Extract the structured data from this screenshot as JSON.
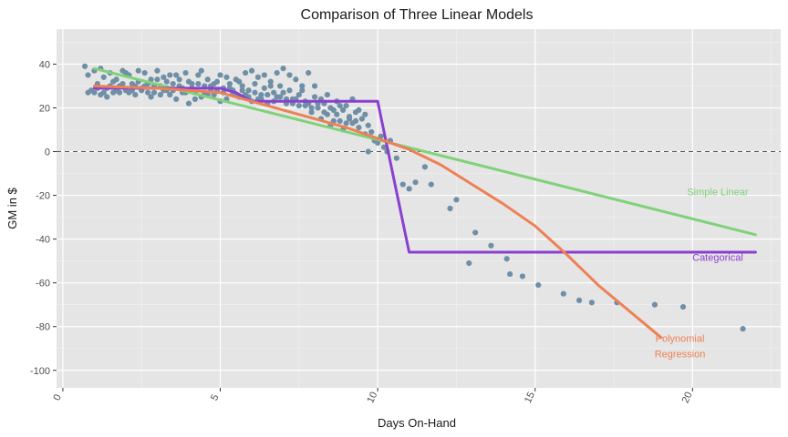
{
  "chart_data": {
    "type": "scatter",
    "title": "Comparison of Three Linear Models",
    "xlabel": "Days On-Hand",
    "ylabel": "GM in $",
    "xlim": [
      -0.2,
      22.8
    ],
    "ylim": [
      -108,
      56
    ],
    "x_ticks": [
      0,
      5,
      10,
      15,
      20
    ],
    "y_ticks": [
      40,
      20,
      0,
      -20,
      -40,
      -60,
      -80,
      -100
    ],
    "grid": true,
    "reference_line": {
      "y": 0,
      "style": "dashed"
    },
    "colors": {
      "panel": "#e5e5e5",
      "grid": "#ffffff",
      "points": "#6f8fa6",
      "simple_linear": "#7fd27a",
      "categorical": "#8a3fcf",
      "polynomial": "#ee8055"
    },
    "series": [
      {
        "name": "Simple Linear",
        "kind": "line",
        "color": "#7fd27a",
        "points": [
          [
            1,
            38
          ],
          [
            22,
            -38
          ]
        ]
      },
      {
        "name": "Categorical",
        "kind": "line",
        "color": "#8a3fcf",
        "points": [
          [
            1,
            29
          ],
          [
            5,
            29
          ],
          [
            5.5,
            27
          ],
          [
            6,
            23
          ],
          [
            10,
            23
          ],
          [
            11,
            -46
          ],
          [
            22,
            -46
          ]
        ]
      },
      {
        "name": "Polynomial Regression",
        "kind": "line",
        "color": "#ee8055",
        "points": [
          [
            1,
            30
          ],
          [
            3,
            29
          ],
          [
            5,
            27
          ],
          [
            7,
            19
          ],
          [
            9,
            11
          ],
          [
            10,
            6
          ],
          [
            11,
            1
          ],
          [
            12,
            -6
          ],
          [
            13,
            -15
          ],
          [
            14,
            -24
          ],
          [
            15,
            -34
          ],
          [
            16,
            -47
          ],
          [
            17,
            -61
          ],
          [
            18,
            -73
          ],
          [
            19,
            -85
          ]
        ]
      }
    ],
    "annotations": [
      {
        "text": "Simple Linear",
        "x": 20.8,
        "y": -20,
        "color": "#7fd27a"
      },
      {
        "text": "Categorical",
        "x": 20.8,
        "y": -50,
        "color": "#8a3fcf"
      },
      {
        "text": "Polynomial",
        "x": 19.6,
        "y": -87,
        "color": "#ee8055"
      },
      {
        "text": "Regression",
        "x": 19.6,
        "y": -94,
        "color": "#ee8055"
      }
    ],
    "scatter_points": [
      [
        0.7,
        39
      ],
      [
        0.8,
        35
      ],
      [
        0.9,
        28
      ],
      [
        1.0,
        37
      ],
      [
        1.1,
        31
      ],
      [
        1.2,
        26
      ],
      [
        0.8,
        27
      ],
      [
        1.3,
        34
      ],
      [
        1.4,
        29
      ],
      [
        1.5,
        36
      ],
      [
        1.6,
        27
      ],
      [
        1.7,
        33
      ],
      [
        1.8,
        30
      ],
      [
        1.9,
        37
      ],
      [
        2.0,
        28
      ],
      [
        2.1,
        35
      ],
      [
        2.2,
        31
      ],
      [
        2.3,
        26
      ],
      [
        2.4,
        32
      ],
      [
        2.5,
        29
      ],
      [
        2.6,
        36
      ],
      [
        2.7,
        27
      ],
      [
        2.8,
        33
      ],
      [
        2.9,
        30
      ],
      [
        3.0,
        37
      ],
      [
        3.1,
        26
      ],
      [
        3.2,
        34
      ],
      [
        3.3,
        28
      ],
      [
        3.4,
        35
      ],
      [
        3.5,
        31
      ],
      [
        3.6,
        24
      ],
      [
        3.7,
        33
      ],
      [
        3.8,
        29
      ],
      [
        3.9,
        36
      ],
      [
        4.0,
        22
      ],
      [
        4.1,
        31
      ],
      [
        4.2,
        27
      ],
      [
        4.3,
        35
      ],
      [
        4.4,
        25
      ],
      [
        4.5,
        30
      ],
      [
        4.6,
        33
      ],
      [
        4.7,
        28
      ],
      [
        4.8,
        26
      ],
      [
        4.9,
        32
      ],
      [
        5.0,
        35
      ],
      [
        5.1,
        29
      ],
      [
        5.2,
        24
      ],
      [
        5.3,
        31
      ],
      [
        5.4,
        27
      ],
      [
        5.5,
        33
      ],
      [
        5.6,
        25
      ],
      [
        5.7,
        30
      ],
      [
        5.8,
        36
      ],
      [
        5.9,
        28
      ],
      [
        6.0,
        23
      ],
      [
        6.1,
        31
      ],
      [
        6.2,
        34
      ],
      [
        6.3,
        26
      ],
      [
        6.4,
        29
      ],
      [
        6.5,
        22
      ],
      [
        6.6,
        32
      ],
      [
        6.7,
        27
      ],
      [
        6.8,
        25
      ],
      [
        6.9,
        30
      ],
      [
        7.0,
        38
      ],
      [
        7.1,
        24
      ],
      [
        7.2,
        28
      ],
      [
        7.3,
        22
      ],
      [
        7.4,
        33
      ],
      [
        7.5,
        26
      ],
      [
        7.6,
        30
      ],
      [
        7.7,
        21
      ],
      [
        7.8,
        36
      ],
      [
        7.9,
        18
      ],
      [
        8.0,
        25
      ],
      [
        8.1,
        20
      ],
      [
        8.2,
        15
      ],
      [
        8.3,
        22
      ],
      [
        8.4,
        17
      ],
      [
        8.5,
        12
      ],
      [
        8.6,
        19
      ],
      [
        8.7,
        23
      ],
      [
        8.8,
        14
      ],
      [
        8.9,
        10
      ],
      [
        9.0,
        21
      ],
      [
        9.1,
        16
      ],
      [
        9.2,
        13
      ],
      [
        9.3,
        18
      ],
      [
        9.4,
        11
      ],
      [
        9.5,
        15
      ],
      [
        9.6,
        8
      ],
      [
        9.7,
        12
      ],
      [
        9.8,
        9
      ],
      [
        9.9,
        5
      ],
      [
        9.7,
        0
      ],
      [
        10.0,
        4
      ],
      [
        10.1,
        7
      ],
      [
        10.2,
        2
      ],
      [
        10.3,
        0
      ],
      [
        10.4,
        5
      ],
      [
        10.6,
        -3
      ],
      [
        10.8,
        -15
      ],
      [
        11.0,
        -17
      ],
      [
        11.2,
        -14
      ],
      [
        11.5,
        -7
      ],
      [
        11.7,
        -15
      ],
      [
        12.3,
        -26
      ],
      [
        12.5,
        -22
      ],
      [
        12.9,
        -51
      ],
      [
        13.1,
        -37
      ],
      [
        13.6,
        -43
      ],
      [
        14.1,
        -49
      ],
      [
        14.2,
        -56
      ],
      [
        14.6,
        -57
      ],
      [
        15.1,
        -61
      ],
      [
        15.9,
        -65
      ],
      [
        16.4,
        -68
      ],
      [
        16.8,
        -69
      ],
      [
        17.6,
        -69
      ],
      [
        18.8,
        -70
      ],
      [
        19.7,
        -71
      ],
      [
        21.6,
        -81
      ],
      [
        1.0,
        27
      ],
      [
        1.2,
        38
      ],
      [
        1.4,
        25
      ],
      [
        1.6,
        32
      ],
      [
        1.8,
        27
      ],
      [
        2.0,
        36
      ],
      [
        2.2,
        28
      ],
      [
        2.4,
        37
      ],
      [
        2.6,
        30
      ],
      [
        2.8,
        25
      ],
      [
        3.0,
        33
      ],
      [
        3.2,
        28
      ],
      [
        3.4,
        26
      ],
      [
        3.6,
        35
      ],
      [
        3.8,
        27
      ],
      [
        4.0,
        32
      ],
      [
        4.2,
        24
      ],
      [
        4.4,
        37
      ],
      [
        4.6,
        26
      ],
      [
        4.8,
        31
      ],
      [
        5.0,
        23
      ],
      [
        5.2,
        34
      ],
      [
        5.4,
        28
      ],
      [
        5.6,
        32
      ],
      [
        5.8,
        26
      ],
      [
        6.0,
        37
      ],
      [
        6.2,
        24
      ],
      [
        6.4,
        35
      ],
      [
        6.6,
        30
      ],
      [
        6.8,
        36
      ],
      [
        7.0,
        27
      ],
      [
        7.2,
        35
      ],
      [
        7.4,
        24
      ],
      [
        7.6,
        28
      ],
      [
        7.8,
        22
      ],
      [
        8.0,
        30
      ],
      [
        8.2,
        24
      ],
      [
        8.4,
        26
      ],
      [
        8.6,
        14
      ],
      [
        8.8,
        21
      ],
      [
        9.0,
        13
      ],
      [
        9.2,
        24
      ],
      [
        9.4,
        19
      ],
      [
        9.6,
        17
      ],
      [
        1.1,
        29
      ],
      [
        1.3,
        27
      ],
      [
        1.5,
        30
      ],
      [
        1.7,
        28
      ],
      [
        1.9,
        31
      ],
      [
        2.1,
        27
      ],
      [
        2.3,
        30
      ],
      [
        2.5,
        28
      ],
      [
        2.7,
        31
      ],
      [
        2.9,
        27
      ],
      [
        3.1,
        30
      ],
      [
        3.3,
        32
      ],
      [
        3.5,
        28
      ],
      [
        3.7,
        30
      ],
      [
        3.9,
        27
      ],
      [
        4.1,
        29
      ],
      [
        4.3,
        31
      ],
      [
        4.5,
        27
      ],
      [
        4.7,
        30
      ],
      [
        4.9,
        28
      ],
      [
        5.1,
        27
      ],
      [
        5.3,
        29
      ],
      [
        5.5,
        26
      ],
      [
        5.7,
        28
      ],
      [
        5.9,
        25
      ],
      [
        6.1,
        27
      ],
      [
        6.3,
        24
      ],
      [
        6.5,
        26
      ],
      [
        6.7,
        23
      ],
      [
        6.9,
        25
      ],
      [
        7.1,
        22
      ],
      [
        7.3,
        24
      ],
      [
        7.5,
        21
      ],
      [
        7.7,
        23
      ],
      [
        7.9,
        20
      ],
      [
        8.1,
        22
      ],
      [
        8.3,
        18
      ],
      [
        8.5,
        20
      ],
      [
        8.7,
        17
      ],
      [
        8.9,
        19
      ],
      [
        9.1,
        15
      ],
      [
        9.3,
        14
      ]
    ]
  }
}
